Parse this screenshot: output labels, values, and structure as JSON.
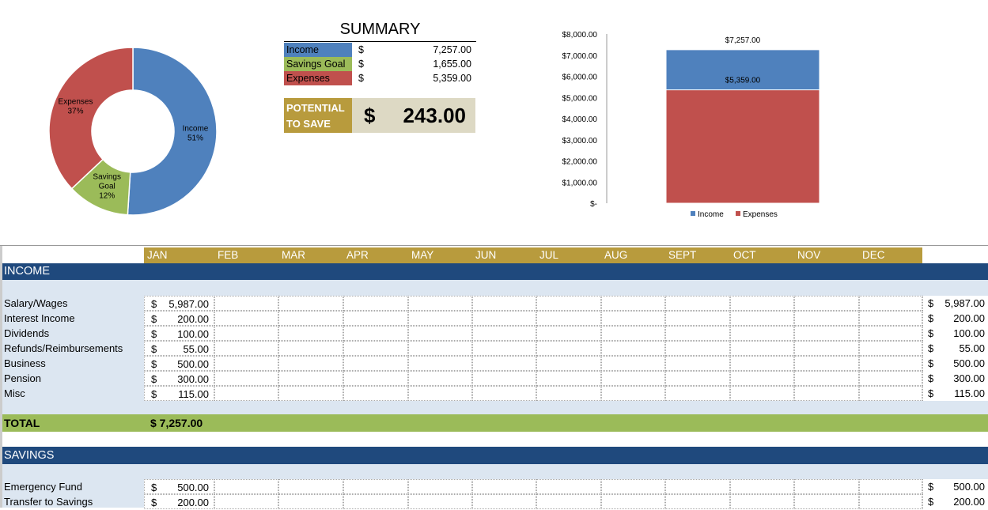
{
  "colors": {
    "income": "#4f81bd",
    "savings": "#9bbb59",
    "expenses": "#c0504d",
    "navy": "#1f497d",
    "gold": "#b89b3d"
  },
  "chart_data": [
    {
      "type": "pie",
      "variant": "donut",
      "slices": [
        {
          "label": "Income",
          "percent": "51%",
          "value": 51
        },
        {
          "label": "Savings Goal",
          "percent": "12%",
          "value": 12
        },
        {
          "label": "Expenses",
          "percent": "37%",
          "value": 37
        }
      ]
    },
    {
      "type": "bar",
      "variant": "overlapped",
      "categories": [
        ""
      ],
      "series": [
        {
          "name": "Income",
          "values": [
            7257
          ],
          "label": "$7,257.00"
        },
        {
          "name": "Expenses",
          "values": [
            5359
          ],
          "label": "$5,359.00"
        }
      ],
      "ylim": [
        0,
        8000
      ],
      "yticks": [
        "$-",
        "$1,000.00",
        "$2,000.00",
        "$3,000.00",
        "$4,000.00",
        "$5,000.00",
        "$6,000.00",
        "$7,000.00",
        "$8,000.00"
      ],
      "legend": "bottom"
    }
  ],
  "summary": {
    "title": "SUMMARY",
    "rows": [
      {
        "label": "Income",
        "currency": "$",
        "value": "7,257.00"
      },
      {
        "label": "Savings Goal",
        "currency": "$",
        "value": "1,655.00"
      },
      {
        "label": "Expenses",
        "currency": "$",
        "value": "5,359.00"
      }
    ],
    "potential_label_1": "POTENTIAL",
    "potential_label_2": "TO SAVE",
    "potential_currency": "$",
    "potential_value": "243.00"
  },
  "months": [
    "JAN",
    "FEB",
    "MAR",
    "APR",
    "MAY",
    "JUN",
    "JUL",
    "AUG",
    "SEPT",
    "OCT",
    "NOV",
    "DEC"
  ],
  "income": {
    "title": "INCOME",
    "rows": [
      {
        "label": "Salary/Wages",
        "jan": "5,987.00",
        "total": "5,987.00"
      },
      {
        "label": "Interest Income",
        "jan": "200.00",
        "total": "200.00"
      },
      {
        "label": "Dividends",
        "jan": "100.00",
        "total": "100.00"
      },
      {
        "label": "Refunds/Reimbursements",
        "jan": "55.00",
        "total": "55.00"
      },
      {
        "label": "Business",
        "jan": "500.00",
        "total": "500.00"
      },
      {
        "label": "Pension",
        "jan": "300.00",
        "total": "300.00"
      },
      {
        "label": "Misc",
        "jan": "115.00",
        "total": "115.00"
      }
    ],
    "total_label": "TOTAL",
    "total_jan": "$ 7,257.00"
  },
  "savings": {
    "title": "SAVINGS",
    "rows": [
      {
        "label": "Emergency Fund",
        "jan": "500.00",
        "total": "500.00"
      },
      {
        "label": "Transfer to Savings",
        "jan": "200.00",
        "total": "200.00"
      }
    ]
  },
  "currency": "$"
}
